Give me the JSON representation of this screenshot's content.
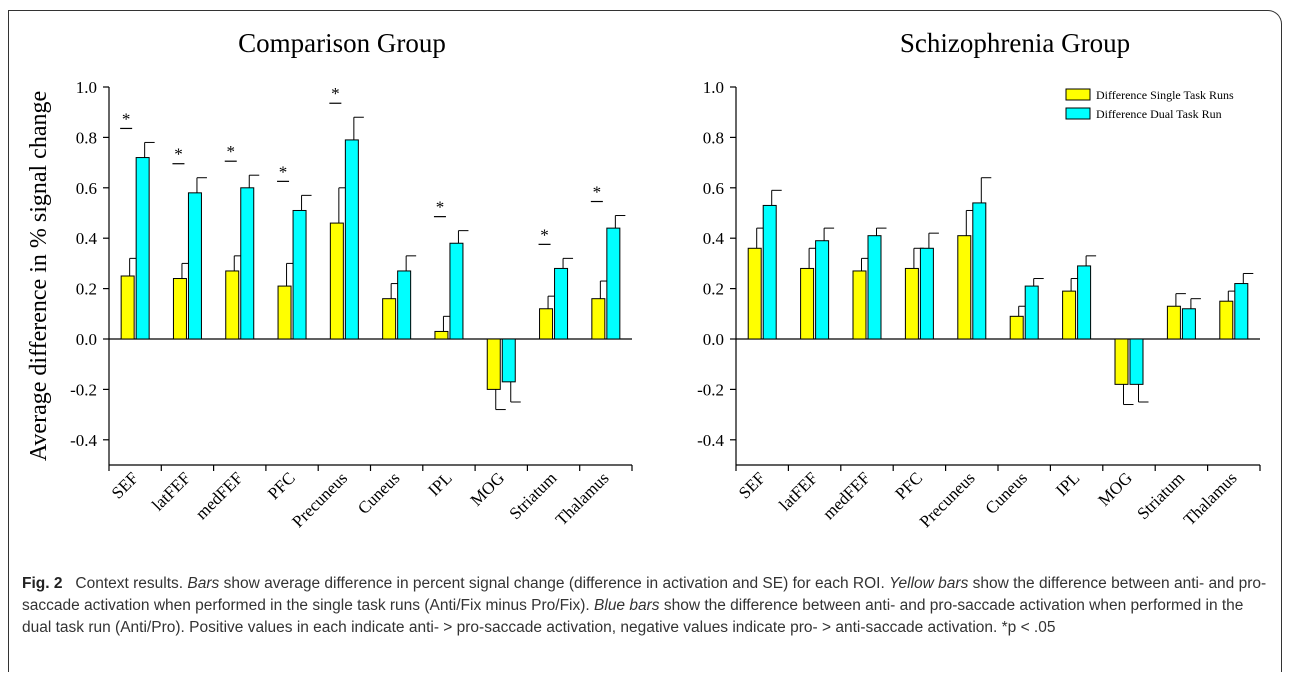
{
  "figure": {
    "caption": {
      "label": "Fig. 2",
      "segments": [
        {
          "text": "Context results. ",
          "italic": false
        },
        {
          "text": "Bars",
          "italic": true
        },
        {
          "text": " show average difference in percent signal change (difference in activation and SE) for each ROI. ",
          "italic": false
        },
        {
          "text": "Yellow bars",
          "italic": true
        },
        {
          "text": " show the difference between anti- and pro-saccade activation when performed in the single task runs (Anti/Fix minus Pro/Fix). ",
          "italic": false
        },
        {
          "text": "Blue bars",
          "italic": true
        },
        {
          "text": " show the difference between anti- and pro-saccade activation when performed in the dual task run (Anti/Pro). Positive values in each indicate anti- > pro-saccade activation, negative values indicate pro- > anti-saccade activation. *p < .05",
          "italic": false
        }
      ]
    }
  },
  "colors": {
    "single": "#ffff00",
    "dual": "#00ffff",
    "stroke": "#000000"
  },
  "chart_data": [
    {
      "type": "bar",
      "title": "Comparison Group",
      "ylabel": "Average difference in % signal change",
      "xlabel": "",
      "ylim": [
        -0.5,
        1.0
      ],
      "yticks": [
        -0.4,
        -0.2,
        0.0,
        0.2,
        0.4,
        0.6,
        0.8,
        1.0
      ],
      "categories": [
        "SEF",
        "latFEF",
        "medFEF",
        "PFC",
        "Precuneus",
        "Cuneus",
        "IPL",
        "MOG",
        "Striatum",
        "Thalamus"
      ],
      "series": [
        {
          "name": "Difference Single Task Runs",
          "values": [
            0.25,
            0.24,
            0.27,
            0.21,
            0.46,
            0.16,
            0.03,
            -0.2,
            0.12,
            0.16
          ],
          "se": [
            0.07,
            0.06,
            0.06,
            0.09,
            0.14,
            0.06,
            0.06,
            0.08,
            0.05,
            0.07
          ]
        },
        {
          "name": "Difference Dual Task Run",
          "values": [
            0.72,
            0.58,
            0.6,
            0.51,
            0.79,
            0.27,
            0.38,
            -0.17,
            0.28,
            0.44
          ],
          "se": [
            0.06,
            0.06,
            0.05,
            0.06,
            0.09,
            0.06,
            0.05,
            0.08,
            0.04,
            0.05
          ]
        }
      ],
      "significant": [
        true,
        true,
        true,
        true,
        true,
        false,
        true,
        false,
        true,
        true
      ],
      "significance_symbol": "*",
      "legend": null
    },
    {
      "type": "bar",
      "title": "Schizophrenia Group",
      "ylabel": "",
      "xlabel": "",
      "ylim": [
        -0.5,
        1.0
      ],
      "yticks": [
        -0.4,
        -0.2,
        0.0,
        0.2,
        0.4,
        0.6,
        0.8,
        1.0
      ],
      "categories": [
        "SEF",
        "latFEF",
        "medFEF",
        "PFC",
        "Precuneus",
        "Cuneus",
        "IPL",
        "MOG",
        "Striatum",
        "Thalamus"
      ],
      "series": [
        {
          "name": "Difference Single Task Runs",
          "values": [
            0.36,
            0.28,
            0.27,
            0.28,
            0.41,
            0.09,
            0.19,
            -0.18,
            0.13,
            0.15
          ],
          "se": [
            0.08,
            0.08,
            0.05,
            0.08,
            0.1,
            0.04,
            0.05,
            0.08,
            0.05,
            0.04
          ]
        },
        {
          "name": "Difference Dual Task Run",
          "values": [
            0.53,
            0.39,
            0.41,
            0.36,
            0.54,
            0.21,
            0.29,
            -0.18,
            0.12,
            0.22
          ],
          "se": [
            0.06,
            0.05,
            0.03,
            0.06,
            0.1,
            0.03,
            0.04,
            0.07,
            0.04,
            0.04
          ]
        }
      ],
      "significant": [
        false,
        false,
        false,
        false,
        false,
        false,
        false,
        false,
        false,
        false
      ],
      "significance_symbol": "*",
      "legend": {
        "placement": "top-right",
        "entries": [
          "Difference Single Task Runs",
          "Difference Dual Task Run"
        ]
      }
    }
  ]
}
